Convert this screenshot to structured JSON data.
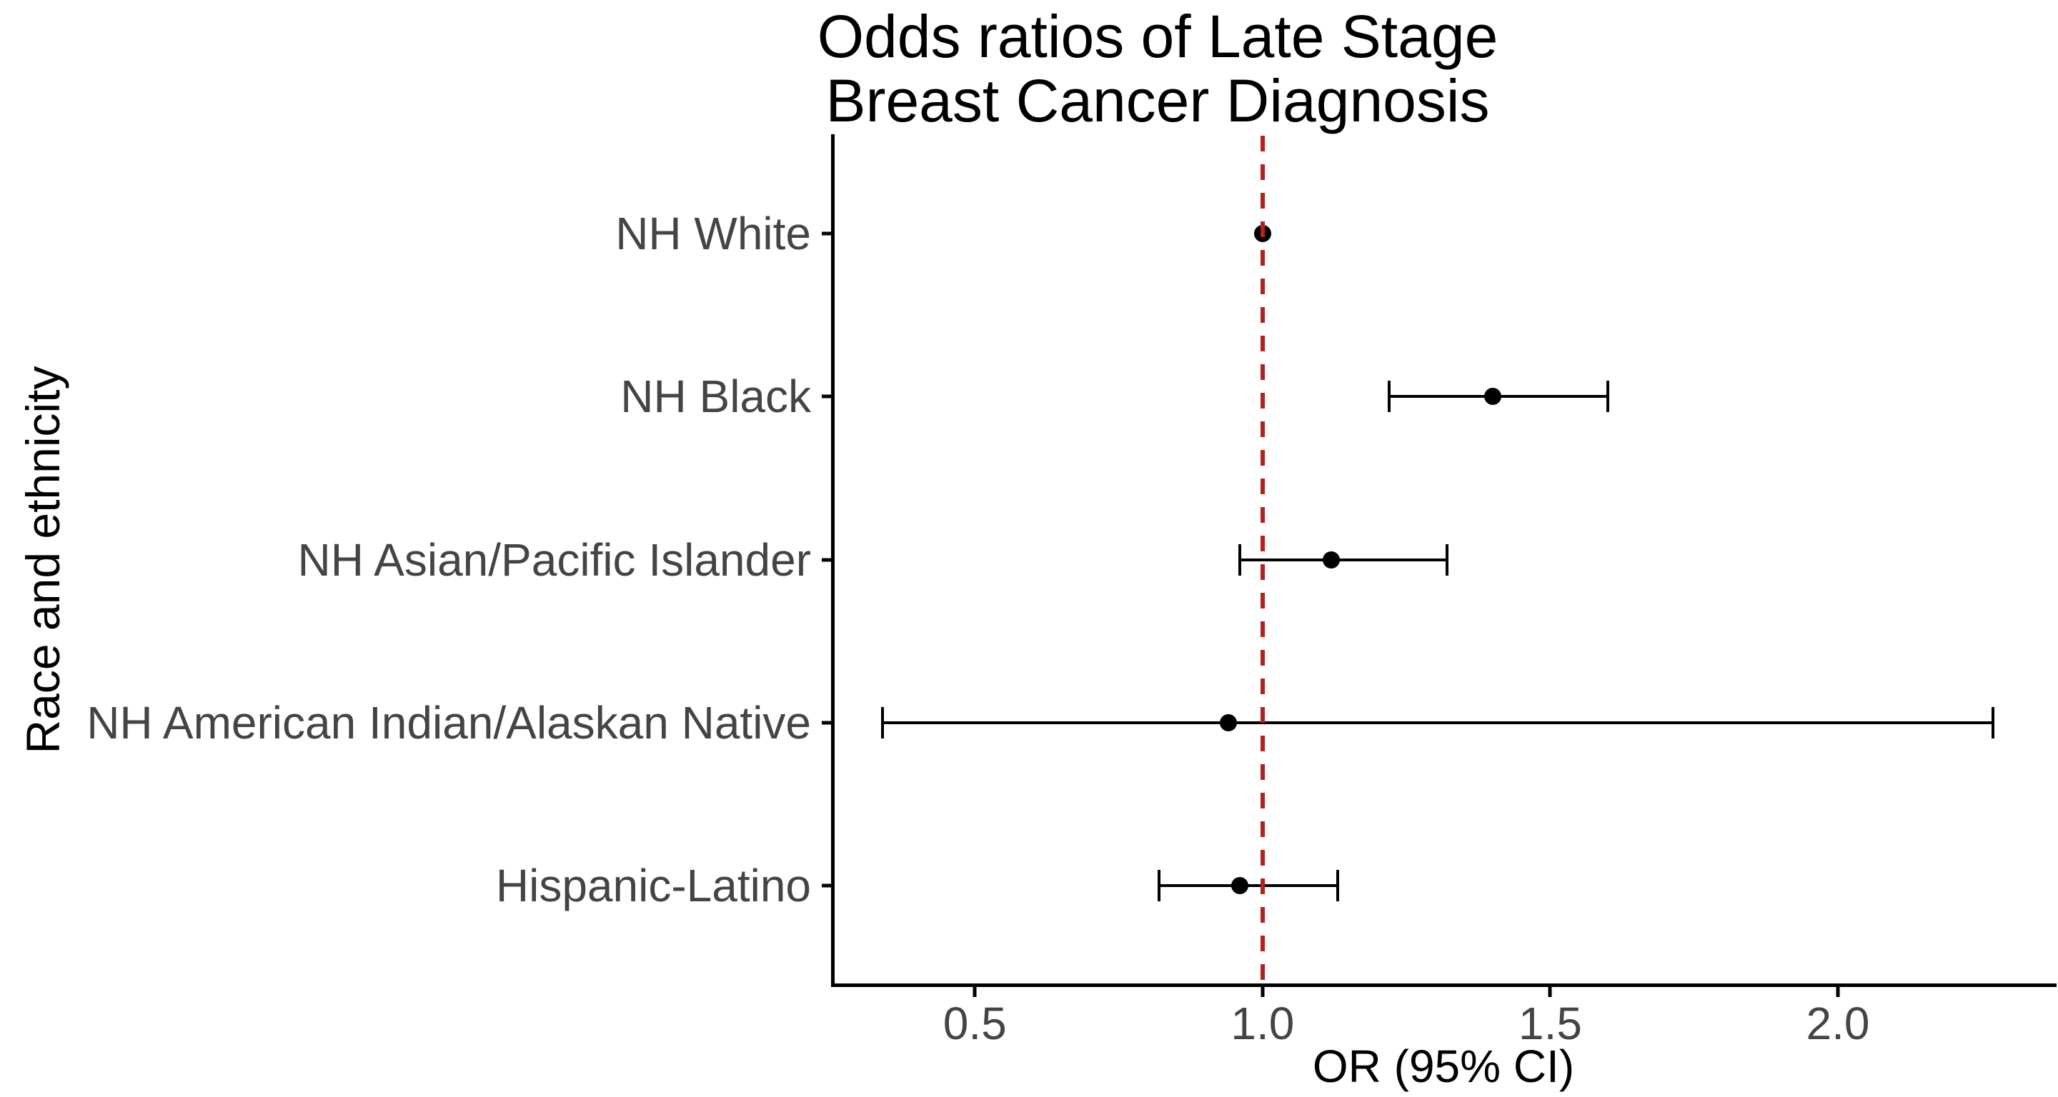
{
  "title": {
    "line1": "Odds ratios of Late Stage",
    "line2": "Breast Cancer Diagnosis"
  },
  "axes": {
    "x_title": "OR (95% CI)",
    "y_title": "Race and ethnicity",
    "x_ticks": [
      {
        "value": 0.5,
        "label": "0.5"
      },
      {
        "value": 1.0,
        "label": "1.0"
      },
      {
        "value": 1.5,
        "label": "1.5"
      },
      {
        "value": 2.0,
        "label": "2.0"
      }
    ]
  },
  "colors": {
    "reference_line": "#B22222",
    "point": "#000000",
    "error_bar": "#000000",
    "axis_text": "#444444",
    "axis_line": "#000000",
    "title_text": "#000000",
    "background": "#ffffff"
  },
  "chart_data": {
    "type": "scatter",
    "subtype": "forest-plot-horizontal-ci",
    "title": "Odds ratios of Late Stage Breast Cancer Diagnosis",
    "xlabel": "OR (95% CI)",
    "ylabel": "Race and ethnicity",
    "xlim": [
      0.25,
      2.38
    ],
    "x_tick_values": [
      0.5,
      1.0,
      1.5,
      2.0
    ],
    "grid": false,
    "legend": "none",
    "reference_line_x": 1.0,
    "reference_line_style": "dashed",
    "categories": [
      "NH White",
      "NH Black",
      "NH Asian/Pacific Islander",
      "NH American Indian/Alaskan Native",
      "Hispanic-Latino"
    ],
    "points": [
      {
        "category": "NH White",
        "or": 1.0,
        "ci_low": null,
        "ci_high": null
      },
      {
        "category": "NH Black",
        "or": 1.4,
        "ci_low": 1.22,
        "ci_high": 1.6
      },
      {
        "category": "NH Asian/Pacific Islander",
        "or": 1.12,
        "ci_low": 0.96,
        "ci_high": 1.32
      },
      {
        "category": "NH American Indian/Alaskan Native",
        "or": 0.94,
        "ci_low": 0.34,
        "ci_high": 2.27
      },
      {
        "category": "Hispanic-Latino",
        "or": 0.96,
        "ci_low": 0.82,
        "ci_high": 1.13
      }
    ]
  }
}
